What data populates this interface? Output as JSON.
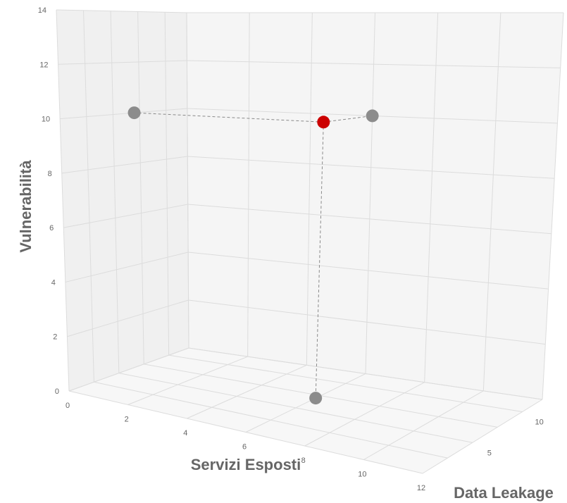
{
  "chart_data": {
    "type": "scatter",
    "projection": "3d",
    "title": "",
    "xlabel": "Servizi Esposti",
    "ylabel": "Vulnerabilità",
    "zlabel": "Data Leakage",
    "x_ticks": [
      "0",
      "2",
      "4",
      "6",
      "8",
      "10",
      "12"
    ],
    "y_ticks": [
      "0",
      "2",
      "4",
      "6",
      "8",
      "10",
      "12",
      "14"
    ],
    "z_ticks": [
      "5",
      "10"
    ],
    "xlim": [
      0,
      12
    ],
    "ylim": [
      0,
      14
    ],
    "zlim": [
      0,
      12
    ],
    "grid": true,
    "points": [
      {
        "x": 6,
        "y": 10,
        "z": 7,
        "color": "#cc0000",
        "role": "main"
      },
      {
        "x": 0,
        "y": 10,
        "z": 7,
        "color": "#8c8c8c",
        "role": "projection"
      },
      {
        "x": 6,
        "y": 0,
        "z": 7,
        "color": "#8c8c8c",
        "role": "projection"
      },
      {
        "x": 6,
        "y": 10,
        "z": 12,
        "color": "#8c8c8c",
        "role": "projection"
      }
    ]
  },
  "colors": {
    "highlight": "#cc0000",
    "projection": "#8c8c8c",
    "panel_back": "#f5f5f5",
    "panel_side": "#f0f0f0",
    "panel_floor": "#f7f7f7",
    "grid": "#dcdcdc"
  }
}
